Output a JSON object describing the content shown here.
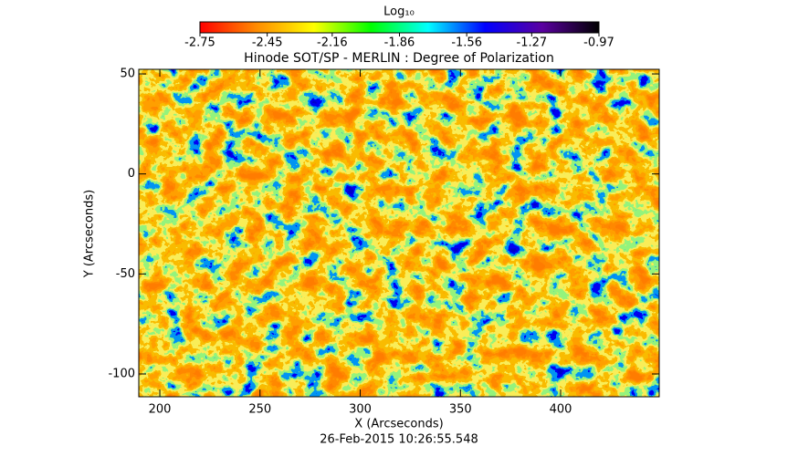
{
  "chart_data": {
    "type": "heatmap",
    "title": "Hinode SOT/SP - MERLIN : Degree of Polarization",
    "x_label": "X (Arcseconds)",
    "y_label": "Y (Arcseconds)",
    "timestamp": "26-Feb-2015 10:26:55.548",
    "colorbar_label": "Log₁₀",
    "colorbar_lim": [
      -2.75,
      -0.97
    ],
    "colorbar_ticks": [
      -2.75,
      -2.45,
      -2.16,
      -1.86,
      -1.56,
      -1.27,
      -0.97
    ],
    "colormap": [
      "#ff0000",
      "#ff8c00",
      "#ffff00",
      "#00ff00",
      "#00ffff",
      "#0000ff",
      "#5a00a0",
      "#000000"
    ],
    "xlim": [
      189.5,
      449.2
    ],
    "xticks": [
      200,
      250,
      300,
      350,
      400
    ],
    "ylim": [
      -111.4,
      52.3
    ],
    "yticks": [
      50,
      0,
      -50,
      -100
    ]
  }
}
